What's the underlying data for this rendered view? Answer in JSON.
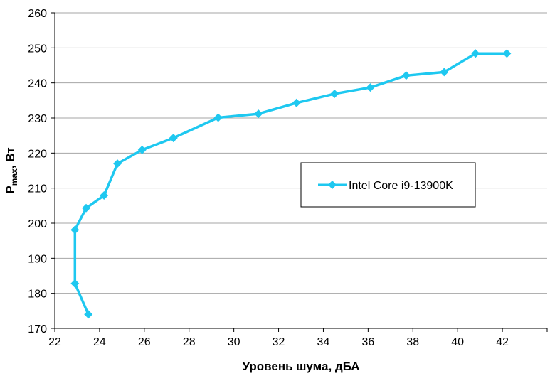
{
  "chart_data": {
    "type": "line",
    "xlabel": "Уровень шума, дБА",
    "ylabel": {
      "main": "P",
      "sub": "max",
      "rest": ", Вт"
    },
    "xlim": [
      22,
      44
    ],
    "ylim": [
      170,
      260
    ],
    "xticks": [
      22,
      24,
      26,
      28,
      30,
      32,
      34,
      36,
      38,
      40,
      42
    ],
    "yticks": [
      170,
      180,
      190,
      200,
      210,
      220,
      230,
      240,
      250,
      260
    ],
    "x_tick_labels": [
      "22",
      "24",
      "26",
      "28",
      "30",
      "32",
      "34",
      "36",
      "38",
      "40",
      "42"
    ],
    "y_tick_labels": [
      "170",
      "180",
      "190",
      "200",
      "210",
      "220",
      "230",
      "240",
      "250",
      "260"
    ],
    "grid": "y",
    "legend_position": "center-right",
    "series": [
      {
        "name": "Intel Core i9-13900K",
        "color": "#1EC8F0",
        "marker": "diamond",
        "points": [
          {
            "x": 23.5,
            "y": 174
          },
          {
            "x": 22.9,
            "y": 182.8
          },
          {
            "x": 22.9,
            "y": 198.1
          },
          {
            "x": 23.4,
            "y": 204.3
          },
          {
            "x": 24.2,
            "y": 207.9
          },
          {
            "x": 24.8,
            "y": 217
          },
          {
            "x": 25.9,
            "y": 220.9
          },
          {
            "x": 27.3,
            "y": 224.3
          },
          {
            "x": 29.3,
            "y": 230.1
          },
          {
            "x": 31.1,
            "y": 231.2
          },
          {
            "x": 32.8,
            "y": 234.3
          },
          {
            "x": 34.5,
            "y": 236.9
          },
          {
            "x": 36.1,
            "y": 238.7
          },
          {
            "x": 37.7,
            "y": 242.1
          },
          {
            "x": 39.4,
            "y": 243.1
          },
          {
            "x": 40.8,
            "y": 248.4
          },
          {
            "x": 42.2,
            "y": 248.4
          }
        ]
      }
    ]
  }
}
